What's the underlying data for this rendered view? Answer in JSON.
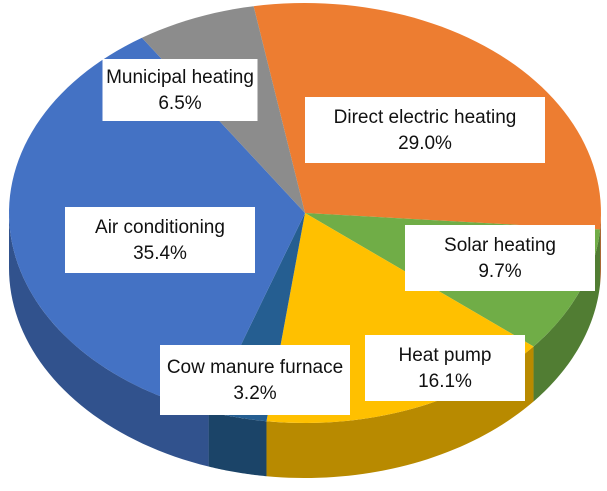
{
  "chart_data": {
    "type": "pie",
    "categories": [
      "Direct electric heating",
      "Solar heating",
      "Heat pump",
      "Cow manure furnace",
      "Air conditioning",
      "Municipal heating"
    ],
    "values": [
      29.0,
      9.7,
      16.1,
      3.2,
      35.4,
      6.5
    ],
    "value_labels": [
      "29.0%",
      "9.7%",
      "16.1%",
      "3.2%",
      "35.4%",
      "6.5%"
    ],
    "colors": [
      "#ed7d31",
      "#70ad47",
      "#ffc000",
      "#255e91",
      "#4472c4",
      "#8c8c8c"
    ]
  }
}
